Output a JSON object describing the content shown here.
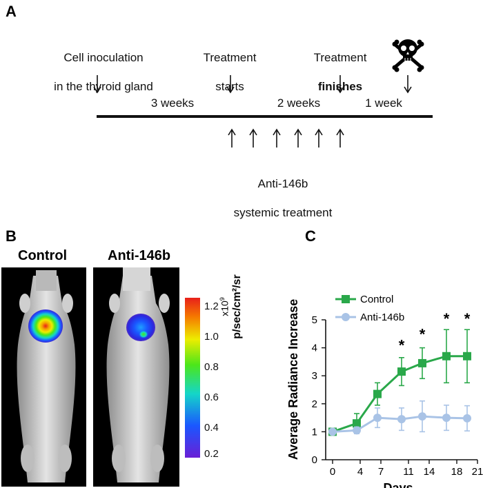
{
  "panel_a": {
    "letter": "A",
    "events": [
      {
        "line1": "Cell inoculation",
        "line2": "in the thyroid gland"
      },
      {
        "line1": "Treatment",
        "line2": "starts"
      },
      {
        "line1": "Treatment",
        "line2": "finishes"
      }
    ],
    "durations": [
      "3 weeks",
      "2 weeks",
      "1 week"
    ],
    "treatment_label": {
      "line1": "Anti-146b",
      "line2": "systemic treatment"
    },
    "end_icon": "skull-crossbones-icon"
  },
  "panel_b": {
    "letter": "B",
    "labels": [
      "Control",
      "Anti-146b"
    ],
    "colorbar": {
      "ticks": [
        "1.2",
        "1.0",
        "0.8",
        "0.6",
        "0.4",
        "0.2"
      ],
      "unit_scale": "x10",
      "unit_exp": "9",
      "unit": "p/sec/cm²/sr",
      "colors": [
        "#e8201a",
        "#f5a300",
        "#eded00",
        "#4ce61a",
        "#14d6c8",
        "#1a57ff",
        "#6a1fd6"
      ]
    }
  },
  "panel_c": {
    "letter": "C"
  },
  "chart_data": {
    "type": "line",
    "xlabel": "Days",
    "ylabel": "Average Radiance Increase",
    "xticks": [
      "0",
      "4",
      "7",
      "11",
      "14",
      "18",
      "21"
    ],
    "yticks": [
      "0",
      "1",
      "2",
      "3",
      "4",
      "5"
    ],
    "xlim": [
      0,
      21
    ],
    "ylim": [
      0,
      5
    ],
    "legend_position": "top-left",
    "series": [
      {
        "name": "Control",
        "color": "#2aa84a",
        "marker": "square",
        "x": [
          0,
          3.5,
          6.5,
          10,
          13,
          16.5,
          19.5
        ],
        "y": [
          1.0,
          1.3,
          2.35,
          3.15,
          3.45,
          3.7,
          3.7
        ],
        "err": [
          0.05,
          0.35,
          0.4,
          0.5,
          0.55,
          0.95,
          0.95
        ]
      },
      {
        "name": "Anti-146b",
        "color": "#a9c3e6",
        "marker": "circle",
        "x": [
          0,
          3.5,
          6.5,
          10,
          13,
          16.5,
          19.5
        ],
        "y": [
          1.0,
          1.05,
          1.5,
          1.45,
          1.55,
          1.5,
          1.48
        ],
        "err": [
          0.05,
          0.12,
          0.35,
          0.4,
          0.55,
          0.45,
          0.45
        ]
      }
    ],
    "significance_marks": [
      {
        "x": 10,
        "y": 4.15,
        "text": "*"
      },
      {
        "x": 13,
        "y": 4.55,
        "text": "*"
      },
      {
        "x": 16.5,
        "y": 5.1,
        "text": "*"
      },
      {
        "x": 19.5,
        "y": 5.1,
        "text": "*"
      }
    ]
  }
}
